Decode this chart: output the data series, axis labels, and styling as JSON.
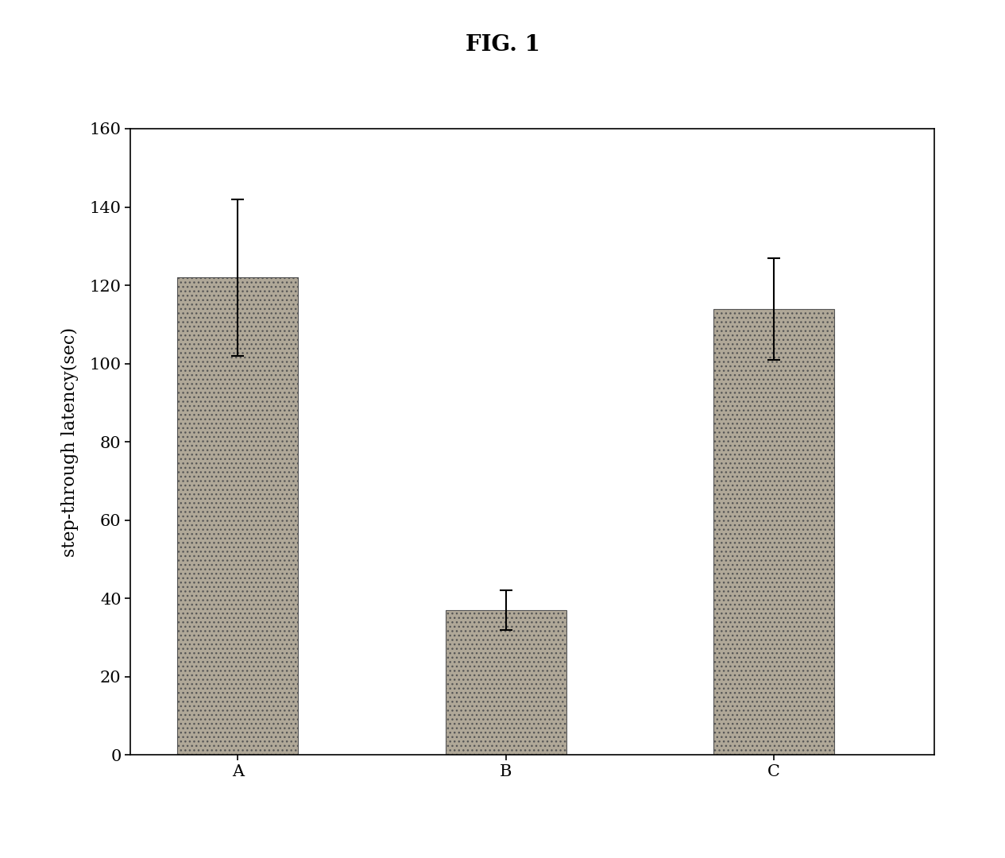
{
  "title": "FIG. 1",
  "categories": [
    "A",
    "B",
    "C"
  ],
  "values": [
    122,
    37,
    114
  ],
  "errors": [
    20,
    5,
    13
  ],
  "ylabel": "step-through latency(sec)",
  "ylim": [
    0,
    160
  ],
  "yticks": [
    0,
    20,
    40,
    60,
    80,
    100,
    120,
    140,
    160
  ],
  "bar_color": "#b0a898",
  "bar_hatch": "...",
  "bar_width": 0.45,
  "bar_positions": [
    1,
    2,
    3
  ],
  "background_color": "#ffffff",
  "title_fontsize": 20,
  "ylabel_fontsize": 16,
  "tick_fontsize": 15,
  "error_capsize": 6,
  "error_linewidth": 1.5
}
